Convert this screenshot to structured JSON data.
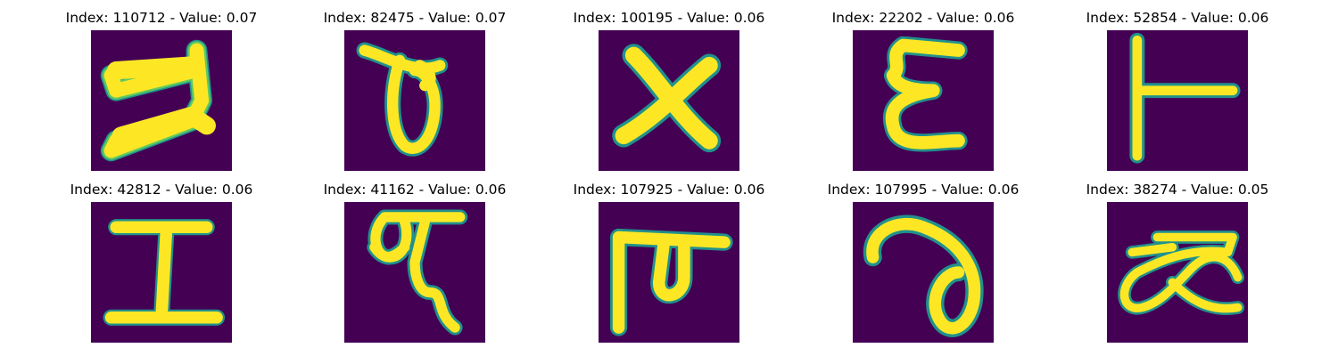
{
  "colors": {
    "background": "#440154",
    "edge": "#21918c",
    "mid": "#5ec962",
    "stroke": "#fde725"
  },
  "panels": [
    {
      "title": "Index: 110712 - Value: 0.07"
    },
    {
      "title": "Index: 82475 - Value: 0.07"
    },
    {
      "title": "Index: 100195 - Value: 0.06"
    },
    {
      "title": "Index: 22202 - Value: 0.06"
    },
    {
      "title": "Index: 52854 - Value: 0.06"
    },
    {
      "title": "Index: 42812 - Value: 0.06"
    },
    {
      "title": "Index: 41162 - Value: 0.06"
    },
    {
      "title": "Index: 107925 - Value: 0.06"
    },
    {
      "title": "Index: 107995 - Value: 0.06"
    },
    {
      "title": "Index: 38274 - Value: 0.05"
    }
  ]
}
